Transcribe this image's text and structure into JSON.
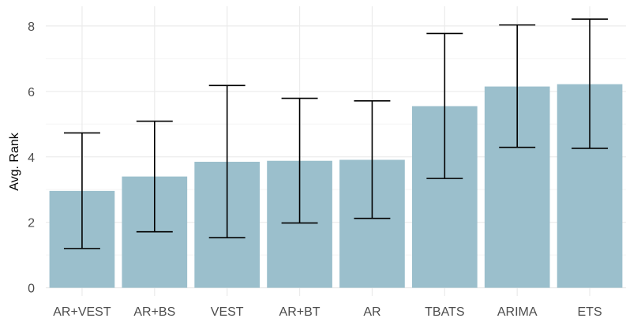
{
  "chart_data": {
    "type": "bar",
    "title": "",
    "xlabel": "",
    "ylabel": "Avg. Rank",
    "categories": [
      "AR+VEST",
      "AR+BS",
      "VEST",
      "AR+BT",
      "AR",
      "TBATS",
      "ARIMA",
      "ETS"
    ],
    "values": [
      2.96,
      3.4,
      3.85,
      3.88,
      3.91,
      5.55,
      6.15,
      6.22
    ],
    "error_low": [
      1.2,
      1.71,
      1.53,
      1.98,
      2.12,
      3.34,
      4.29,
      4.26
    ],
    "error_high": [
      4.73,
      5.09,
      6.18,
      5.79,
      5.71,
      7.77,
      8.03,
      8.21
    ],
    "ylim": [
      -0.25,
      8.6
    ],
    "yticks": [
      0,
      2,
      4,
      6,
      8
    ],
    "ytick_labels": [
      "0",
      "2",
      "4",
      "6",
      "8"
    ],
    "grid": true,
    "legend": "none",
    "colors": {
      "bar": "#9bbfcc",
      "error_bar": "#000000",
      "grid_major": "#ebebeb",
      "grid_minor": "#f5f5f5",
      "tick_text": "#4d4d4d"
    }
  }
}
